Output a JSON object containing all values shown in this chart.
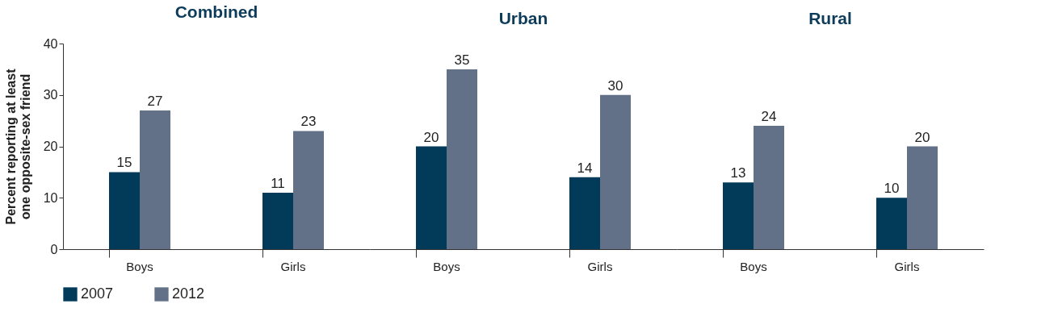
{
  "chart_data": [
    {
      "type": "bar",
      "title": "Combined",
      "ylabel": "Percent reporting at least\none opposite-sex friend",
      "categories": [
        "Boys",
        "Girls"
      ],
      "ylim": [
        0,
        40
      ],
      "yticks": [
        0,
        10,
        20,
        30,
        40
      ],
      "data_labels": true,
      "grid": false,
      "legend": "bottom",
      "series": [
        {
          "name": "2007",
          "color": "#023a5a",
          "values": [
            15,
            11
          ]
        },
        {
          "name": "2012",
          "color": "#627188",
          "values": [
            27,
            23
          ]
        }
      ]
    },
    {
      "type": "bar",
      "title": "Urban",
      "categories": [
        "Boys",
        "Girls"
      ],
      "ylim": [
        0,
        40
      ],
      "yticks": [
        0,
        10,
        20,
        30,
        40
      ],
      "data_labels": true,
      "grid": false,
      "tick_labels": "x",
      "legend": "bottom",
      "series": [
        {
          "name": "2007",
          "color": "#023a5a",
          "values": [
            20,
            14
          ]
        },
        {
          "name": "2012",
          "color": "#627188",
          "values": [
            35,
            30
          ]
        }
      ]
    },
    {
      "type": "bar",
      "title": "Rural",
      "categories": [
        "Boys",
        "Girls"
      ],
      "ylim": [
        0,
        40
      ],
      "yticks": [
        0,
        10,
        20,
        30,
        40
      ],
      "data_labels": true,
      "grid": false,
      "tick_labels": "x",
      "legend": "bottom",
      "series": [
        {
          "name": "2007",
          "color": "#023a5a",
          "values": [
            13,
            10
          ]
        },
        {
          "name": "2012",
          "color": "#627188",
          "values": [
            24,
            20
          ]
        }
      ]
    }
  ]
}
